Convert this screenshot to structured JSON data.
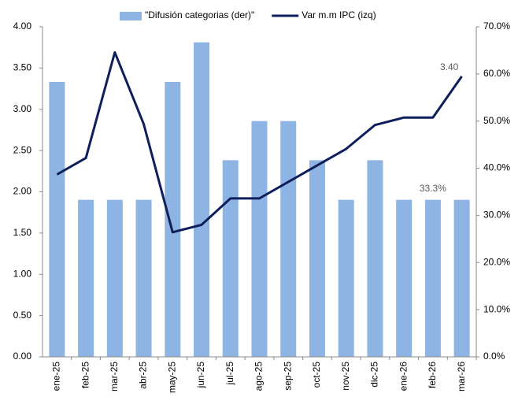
{
  "chart_data": {
    "type": "bar-line",
    "categories": [
      "ene-25",
      "feb-25",
      "mar-25",
      "abr-25",
      "may-25",
      "jun-25",
      "jul-25",
      "ago-25",
      "sep-25",
      "oct-25",
      "nov-25",
      "dic-25",
      "ene-26",
      "feb-26",
      "mar-26"
    ],
    "series": [
      {
        "name": "\"Difusión categorias (der)\"",
        "type": "bar",
        "axis": "y2",
        "color": "#8eb4e3",
        "values": [
          58.3,
          33.3,
          33.3,
          33.3,
          58.3,
          66.7,
          41.7,
          50.0,
          50.0,
          41.7,
          33.3,
          41.7,
          33.3,
          33.3,
          33.3
        ],
        "value_labels": [
          null,
          null,
          null,
          null,
          null,
          null,
          null,
          null,
          null,
          null,
          null,
          null,
          null,
          "33.3%",
          null
        ]
      },
      {
        "name": "Var m.m IPC (izq)",
        "type": "line",
        "axis": "y",
        "color": "#0e1f5b",
        "values": [
          2.21,
          2.41,
          3.69,
          2.82,
          1.51,
          1.6,
          1.92,
          1.92,
          2.12,
          2.32,
          2.52,
          2.81,
          2.9,
          2.9,
          3.4
        ],
        "value_labels": [
          null,
          null,
          null,
          null,
          null,
          null,
          null,
          null,
          null,
          null,
          null,
          null,
          null,
          null,
          "3.40"
        ]
      }
    ],
    "ylim": [
      0,
      4
    ],
    "yticks": [
      {
        "value": 0,
        "label": "0.00"
      },
      {
        "value": 0.5,
        "label": "0.50"
      },
      {
        "value": 1,
        "label": "1.00"
      },
      {
        "value": 1.5,
        "label": "1.50"
      },
      {
        "value": 2,
        "label": "2.00"
      },
      {
        "value": 2.5,
        "label": "2.50"
      },
      {
        "value": 3,
        "label": "3.00"
      },
      {
        "value": 3.5,
        "label": "3.50"
      },
      {
        "value": 4,
        "label": "4.00"
      }
    ],
    "y2lim": [
      0,
      70
    ],
    "y2ticks": [
      {
        "value": 0,
        "label": "0.0%"
      },
      {
        "value": 10,
        "label": "10.0%"
      },
      {
        "value": 20,
        "label": "20.0%"
      },
      {
        "value": 30,
        "label": "30.0%"
      },
      {
        "value": 40,
        "label": "40.0%"
      },
      {
        "value": 50,
        "label": "50.0%"
      },
      {
        "value": 60,
        "label": "60.0%"
      },
      {
        "value": 70,
        "label": "70.0%"
      }
    ],
    "legend": "top"
  }
}
